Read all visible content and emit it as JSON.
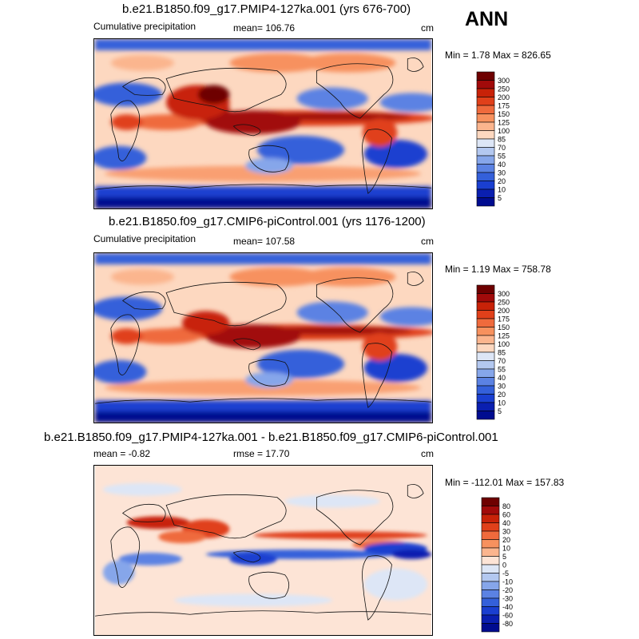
{
  "season": "ANN",
  "panels": [
    {
      "title": "b.e21.B1850.f09_g17.PMIP4-127ka.001 (yrs 676-700)",
      "left_label": "Cumulative precipitation",
      "center_label": "mean= 106.76",
      "units": "cm",
      "minmax": "Min =   1.78 Max = 826.65"
    },
    {
      "title": "b.e21.B1850.f09_g17.CMIP6-piControl.001 (yrs 1176-1200)",
      "left_label": "Cumulative precipitation",
      "center_label": "mean= 107.58",
      "units": "cm",
      "minmax": "Min =   1.19 Max = 758.78"
    },
    {
      "title": "b.e21.B1850.f09_g17.PMIP4-127ka.001 - b.e21.B1850.f09_g17.CMIP6-piControl.001",
      "left_label": "mean =  -0.82",
      "center_label": "rmse =  17.70",
      "units": "cm",
      "minmax": "Min = -112.01 Max = 157.83"
    }
  ],
  "chart_data": [
    {
      "type": "heatmap",
      "title": "b.e21.B1850.f09_g17.PMIP4-127ka.001 (yrs 676-700)",
      "variable": "Cumulative precipitation",
      "units": "cm",
      "mean": 106.76,
      "min": 1.78,
      "max": 826.65,
      "colorbar_levels": [
        300,
        250,
        200,
        175,
        150,
        125,
        100,
        85,
        70,
        55,
        40,
        30,
        20,
        10,
        5
      ],
      "colorbar_colors": [
        "#6e0000",
        "#a10a0a",
        "#c82208",
        "#e0401a",
        "#ef6a3c",
        "#f7915e",
        "#fbb58e",
        "#fdd8c0",
        "#dde6f6",
        "#b3c8f0",
        "#86a6ea",
        "#5b82e3",
        "#3460da",
        "#1a3fd0",
        "#0a1fb0",
        "#000c90"
      ]
    },
    {
      "type": "heatmap",
      "title": "b.e21.B1850.f09_g17.CMIP6-piControl.001 (yrs 1176-1200)",
      "variable": "Cumulative precipitation",
      "units": "cm",
      "mean": 107.58,
      "min": 1.19,
      "max": 758.78,
      "colorbar_levels": [
        300,
        250,
        200,
        175,
        150,
        125,
        100,
        85,
        70,
        55,
        40,
        30,
        20,
        10,
        5
      ],
      "colorbar_colors": [
        "#6e0000",
        "#a10a0a",
        "#c82208",
        "#e0401a",
        "#ef6a3c",
        "#f7915e",
        "#fbb58e",
        "#fdd8c0",
        "#dde6f6",
        "#b3c8f0",
        "#86a6ea",
        "#5b82e3",
        "#3460da",
        "#1a3fd0",
        "#0a1fb0",
        "#000c90"
      ]
    },
    {
      "type": "heatmap",
      "title": "b.e21.B1850.f09_g17.PMIP4-127ka.001 - b.e21.B1850.f09_g17.CMIP6-piControl.001",
      "units": "cm",
      "mean": -0.82,
      "rmse": 17.7,
      "min": -112.01,
      "max": 157.83,
      "colorbar_levels": [
        80,
        60,
        40,
        30,
        20,
        10,
        5,
        0,
        -5,
        -10,
        -20,
        -30,
        -40,
        -60,
        -80
      ],
      "colorbar_colors": [
        "#6e0000",
        "#a10a0a",
        "#c82208",
        "#e0401a",
        "#ef6a3c",
        "#f7915e",
        "#fbb58e",
        "#fde4d6",
        "#dde6f6",
        "#b3c8f0",
        "#86a6ea",
        "#5b82e3",
        "#3460da",
        "#1a3fd0",
        "#0a1fb0",
        "#000c90"
      ]
    }
  ]
}
